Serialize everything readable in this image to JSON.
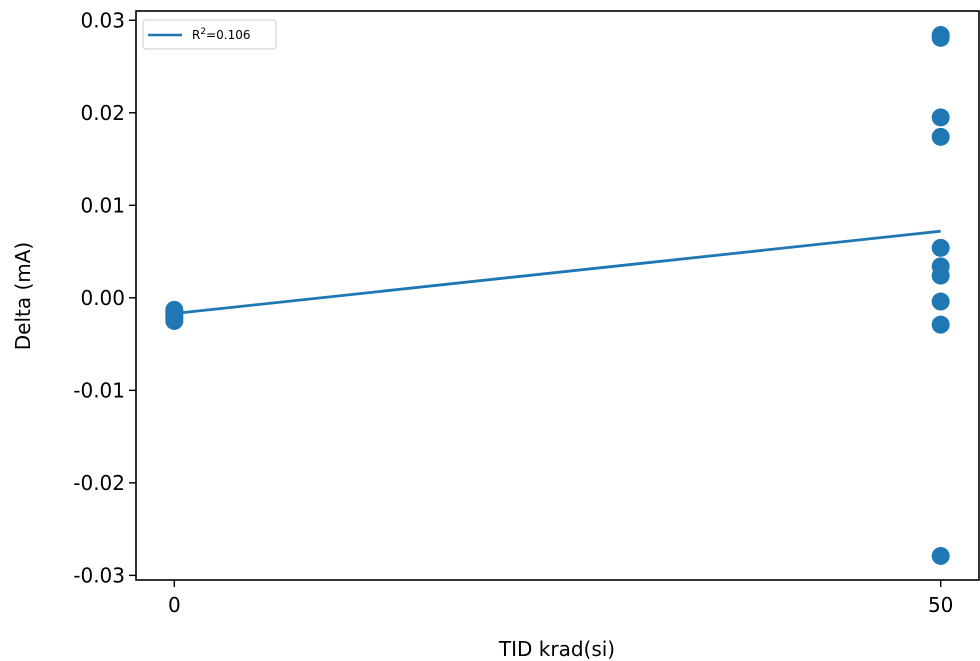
{
  "chart_data": {
    "type": "scatter",
    "title": "",
    "xlabel": "TID krad(si)",
    "ylabel": "Delta (mA)",
    "xlim": [
      -2.5,
      52.5
    ],
    "ylim": [
      -0.0305,
      0.031
    ],
    "x_ticks": [
      {
        "value": 0,
        "label": "0"
      },
      {
        "value": 50,
        "label": "50"
      }
    ],
    "y_ticks": [
      {
        "value": 0.03,
        "label": "0.03"
      },
      {
        "value": 0.02,
        "label": "0.02"
      },
      {
        "value": 0.01,
        "label": "0.01"
      },
      {
        "value": 0.0,
        "label": "0.00"
      },
      {
        "value": -0.01,
        "label": "-0.01"
      },
      {
        "value": -0.02,
        "label": "-0.02"
      },
      {
        "value": -0.03,
        "label": "-0.03"
      }
    ],
    "grid": false,
    "legend_position": "top-left",
    "color": "#1f77b4",
    "points": [
      {
        "x": 0,
        "y": -0.0013
      },
      {
        "x": 0,
        "y": -0.0016
      },
      {
        "x": 0,
        "y": -0.0019
      },
      {
        "x": 0,
        "y": -0.0022
      },
      {
        "x": 0,
        "y": -0.0025
      },
      {
        "x": 50,
        "y": 0.0284
      },
      {
        "x": 50,
        "y": 0.0281
      },
      {
        "x": 50,
        "y": 0.0195
      },
      {
        "x": 50,
        "y": 0.0174
      },
      {
        "x": 50,
        "y": 0.0054
      },
      {
        "x": 50,
        "y": 0.0034
      },
      {
        "x": 50,
        "y": 0.0024
      },
      {
        "x": 50,
        "y": -0.0004
      },
      {
        "x": 50,
        "y": -0.0029
      },
      {
        "x": 50,
        "y": -0.0279
      }
    ],
    "fit_line": {
      "x": [
        0,
        50
      ],
      "y": [
        -0.0017,
        0.0072
      ]
    },
    "legend": {
      "r_prefix": "R",
      "r_sup": "2",
      "r_value": "=0.106"
    }
  }
}
